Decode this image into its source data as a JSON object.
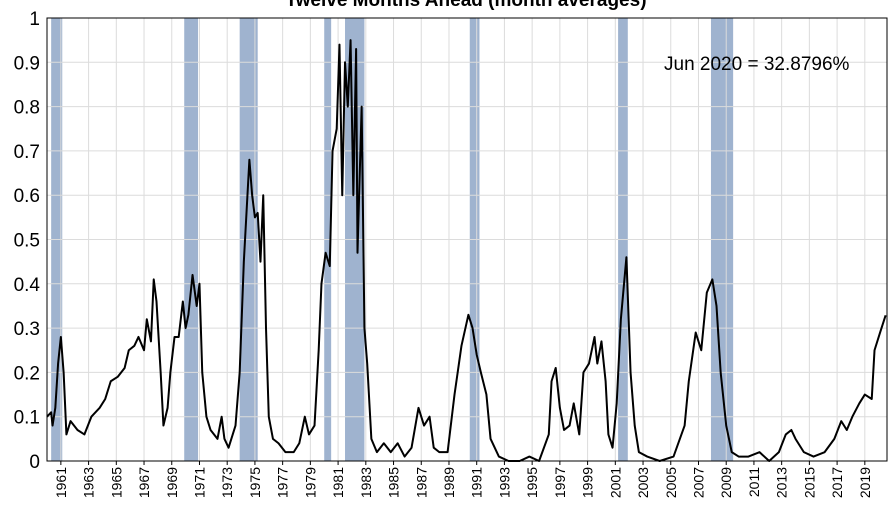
{
  "chart_data": {
    "type": "line",
    "title": "Twelve Months Ahead (month averages)",
    "annotation": "Jun 2020 = 32.8796%",
    "xlim": [
      1960,
      2020.6
    ],
    "xticks": [
      1961,
      1963,
      1965,
      1967,
      1969,
      1971,
      1973,
      1975,
      1977,
      1979,
      1981,
      1983,
      1985,
      1987,
      1989,
      1991,
      1993,
      1995,
      1997,
      1999,
      2001,
      2003,
      2005,
      2007,
      2009,
      2011,
      2013,
      2015,
      2017,
      2019
    ],
    "ylim": [
      0,
      1
    ],
    "yticks": [
      0,
      0.1,
      0.2,
      0.3,
      0.4,
      0.5,
      0.6,
      0.7,
      0.8,
      0.9,
      1
    ],
    "grid": true,
    "recession_color": "#9fb3cf",
    "recessions": [
      [
        1960.3,
        1961.1
      ],
      [
        1969.9,
        1970.9
      ],
      [
        1973.9,
        1975.2
      ],
      [
        1980.0,
        1980.5
      ],
      [
        1981.5,
        1982.9
      ],
      [
        1990.5,
        1991.2
      ],
      [
        2001.2,
        2001.9
      ],
      [
        2007.9,
        2009.5
      ]
    ],
    "x": [
      1960.0,
      1960.3,
      1960.4,
      1960.6,
      1960.8,
      1961.0,
      1961.2,
      1961.4,
      1961.7,
      1962.2,
      1962.7,
      1963.2,
      1963.8,
      1964.2,
      1964.6,
      1965.1,
      1965.6,
      1965.9,
      1966.3,
      1966.6,
      1967.0,
      1967.2,
      1967.5,
      1967.7,
      1967.9,
      1968.2,
      1968.4,
      1968.7,
      1968.9,
      1969.2,
      1969.5,
      1969.8,
      1970.0,
      1970.2,
      1970.5,
      1970.8,
      1971.0,
      1971.2,
      1971.5,
      1971.8,
      1972.3,
      1972.6,
      1972.8,
      1973.1,
      1973.6,
      1973.9,
      1974.2,
      1974.6,
      1974.8,
      1975.0,
      1975.2,
      1975.4,
      1975.6,
      1975.8,
      1976.0,
      1976.3,
      1976.7,
      1977.2,
      1977.8,
      1978.2,
      1978.6,
      1978.9,
      1979.3,
      1979.6,
      1979.8,
      1980.1,
      1980.4,
      1980.6,
      1980.9,
      1981.1,
      1981.3,
      1981.5,
      1981.7,
      1981.9,
      1982.1,
      1982.3,
      1982.4,
      1982.7,
      1982.9,
      1983.1,
      1983.4,
      1983.8,
      1984.3,
      1984.8,
      1985.3,
      1985.8,
      1986.3,
      1986.8,
      1987.2,
      1987.6,
      1987.9,
      1988.3,
      1988.9,
      1989.4,
      1989.9,
      1990.4,
      1990.7,
      1991.0,
      1991.3,
      1991.7,
      1992.0,
      1992.6,
      1993.3,
      1994.1,
      1994.8,
      1995.5,
      1996.2,
      1996.4,
      1996.7,
      1997.0,
      1997.3,
      1997.7,
      1998.0,
      1998.4,
      1998.7,
      1999.1,
      1999.5,
      1999.7,
      2000.0,
      2000.3,
      2000.5,
      2000.8,
      2001.1,
      2001.4,
      2001.8,
      2002.1,
      2002.4,
      2002.7,
      2003.3,
      2004.2,
      2005.2,
      2006.0,
      2006.3,
      2006.8,
      2007.2,
      2007.6,
      2008.0,
      2008.3,
      2008.6,
      2009.0,
      2009.4,
      2009.9,
      2010.6,
      2011.4,
      2012.1,
      2012.8,
      2013.3,
      2013.7,
      2014.0,
      2014.6,
      2015.3,
      2016.1,
      2016.8,
      2017.3,
      2017.7,
      2018.1,
      2018.6,
      2019.0,
      2019.5,
      2019.7,
      2020.1,
      2020.5
    ],
    "series": [
      {
        "color": "#000000",
        "values": [
          0.1,
          0.11,
          0.08,
          0.12,
          0.22,
          0.28,
          0.2,
          0.06,
          0.09,
          0.07,
          0.06,
          0.1,
          0.12,
          0.14,
          0.18,
          0.19,
          0.21,
          0.25,
          0.26,
          0.28,
          0.25,
          0.32,
          0.27,
          0.41,
          0.36,
          0.2,
          0.08,
          0.12,
          0.2,
          0.28,
          0.28,
          0.36,
          0.3,
          0.33,
          0.42,
          0.35,
          0.4,
          0.2,
          0.1,
          0.07,
          0.05,
          0.1,
          0.05,
          0.03,
          0.08,
          0.2,
          0.45,
          0.68,
          0.6,
          0.55,
          0.56,
          0.45,
          0.6,
          0.3,
          0.1,
          0.05,
          0.04,
          0.02,
          0.02,
          0.04,
          0.1,
          0.06,
          0.08,
          0.25,
          0.4,
          0.47,
          0.44,
          0.7,
          0.75,
          0.94,
          0.6,
          0.9,
          0.8,
          0.95,
          0.6,
          0.93,
          0.47,
          0.8,
          0.3,
          0.22,
          0.05,
          0.02,
          0.04,
          0.02,
          0.04,
          0.01,
          0.03,
          0.12,
          0.08,
          0.1,
          0.03,
          0.02,
          0.02,
          0.15,
          0.26,
          0.33,
          0.3,
          0.24,
          0.2,
          0.15,
          0.05,
          0.01,
          0.0,
          0.0,
          0.01,
          0.0,
          0.06,
          0.18,
          0.21,
          0.12,
          0.07,
          0.08,
          0.13,
          0.06,
          0.2,
          0.22,
          0.28,
          0.22,
          0.27,
          0.18,
          0.06,
          0.03,
          0.13,
          0.32,
          0.46,
          0.2,
          0.08,
          0.02,
          0.01,
          0.0,
          0.01,
          0.08,
          0.18,
          0.29,
          0.25,
          0.38,
          0.41,
          0.35,
          0.2,
          0.08,
          0.02,
          0.01,
          0.01,
          0.02,
          0.0,
          0.02,
          0.06,
          0.07,
          0.05,
          0.02,
          0.01,
          0.02,
          0.05,
          0.09,
          0.07,
          0.1,
          0.13,
          0.15,
          0.14,
          0.25,
          0.29,
          0.328796
        ]
      }
    ]
  }
}
